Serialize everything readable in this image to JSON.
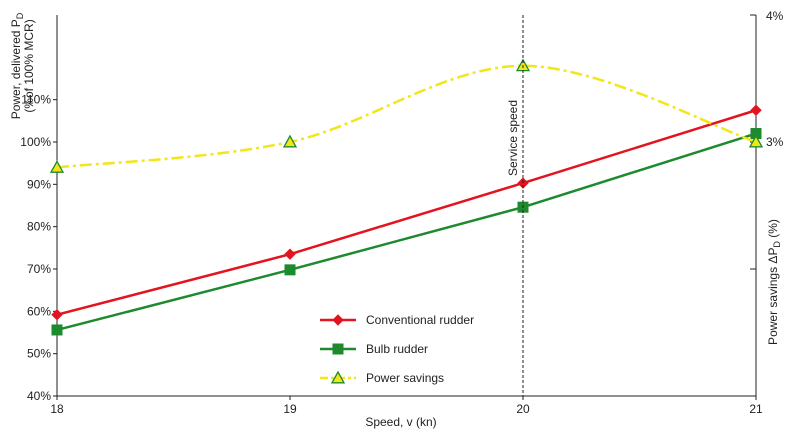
{
  "chart_data": {
    "type": "line",
    "x": [
      18,
      19,
      20,
      21
    ],
    "xlabel": "Speed, v (kn)",
    "xticks": [
      "18",
      "19",
      "20",
      "21"
    ],
    "xlim": [
      18,
      21
    ],
    "ylabel_line1": "Power, delivered P",
    "ylabel_sub": "D",
    "ylabel_line2": "(%of 100% MCR)",
    "ylim": [
      40,
      130
    ],
    "yticks": [
      "40%",
      "50%",
      "60%",
      "70%",
      "80%",
      "90%",
      "100%",
      "110%"
    ],
    "y2label_main": "Power savings ΔP",
    "y2label_sub": "D",
    "y2label_unit": " (%)",
    "y2lim": [
      1,
      4
    ],
    "y2ticks": [
      "3%",
      "4%"
    ],
    "annotation": "Service speed",
    "annotation_x": 20,
    "grid": false,
    "legend_position": "center-left",
    "series": [
      {
        "name": "Conventional rudder",
        "axis": "left",
        "marker": "diamond",
        "color": "#e3141f",
        "style": "solid",
        "values": [
          59.2,
          73.5,
          90.3,
          107.5
        ]
      },
      {
        "name": "Bulb rudder",
        "axis": "left",
        "marker": "square",
        "color": "#1e8a2e",
        "style": "solid",
        "values": [
          55.6,
          69.8,
          84.6,
          102.0
        ]
      },
      {
        "name": "Power savings",
        "axis": "right",
        "marker": "triangle",
        "color": "#f2e619",
        "style": "dashdot",
        "values": [
          2.8,
          3.0,
          3.6,
          3.0
        ]
      }
    ]
  }
}
